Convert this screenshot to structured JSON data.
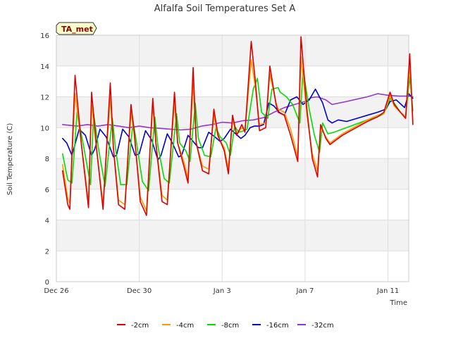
{
  "chart_data": {
    "type": "line",
    "title": "Alfalfa Soil Temperatures Set A",
    "xlabel": "Time",
    "ylabel": "Soil Temperature (C)",
    "ylim": [
      0,
      16
    ],
    "yticks": [
      0,
      2,
      4,
      6,
      8,
      10,
      12,
      14,
      16
    ],
    "xlim": [
      0,
      17
    ],
    "xticks": [
      {
        "x": 0,
        "label": "Dec 26"
      },
      {
        "x": 4,
        "label": "Dec 30"
      },
      {
        "x": 8,
        "label": "Jan 3"
      },
      {
        "x": 12,
        "label": "Jan 7"
      },
      {
        "x": 16,
        "label": "Jan 11"
      }
    ],
    "grid": true,
    "legend": "bottom",
    "station_tag": "TA_met",
    "series": [
      {
        "name": "-2cm",
        "color": "#dd0000",
        "x": [
          0.3,
          0.55,
          0.65,
          0.9,
          1.2,
          1.55,
          1.7,
          1.95,
          2.25,
          2.6,
          2.75,
          3.0,
          3.3,
          3.6,
          3.75,
          4.05,
          4.35,
          4.65,
          4.8,
          5.1,
          5.35,
          5.7,
          5.85,
          6.15,
          6.35,
          6.6,
          6.75,
          7.05,
          7.35,
          7.6,
          7.8,
          8.1,
          8.3,
          8.5,
          8.7,
          8.95,
          9.1,
          9.4,
          9.6,
          9.8,
          10.1,
          10.3,
          10.6,
          10.7,
          11.0,
          11.3,
          11.65,
          11.8,
          12.1,
          12.35,
          12.6,
          12.75,
          13.0,
          13.2,
          13.4,
          13.8,
          14.2,
          14.6,
          15.0,
          15.5,
          15.8,
          16.1,
          16.3,
          16.6,
          16.85,
          17.05,
          17.2
        ],
        "values": [
          7.2,
          5.0,
          4.7,
          13.4,
          9.0,
          4.8,
          12.3,
          8.5,
          4.7,
          12.9,
          8.7,
          5.0,
          4.7,
          11.5,
          9.8,
          5.2,
          4.3,
          11.9,
          9.0,
          5.2,
          5.0,
          12.3,
          9.0,
          7.5,
          6.4,
          13.9,
          9.0,
          7.2,
          7.0,
          11.2,
          9.5,
          8.5,
          7.0,
          10.8,
          9.5,
          10.2,
          9.7,
          15.6,
          13.0,
          9.8,
          10.0,
          14.0,
          11.5,
          11.0,
          10.8,
          9.5,
          7.8,
          15.9,
          11.0,
          8.0,
          6.8,
          10.2,
          9.3,
          8.9,
          9.1,
          9.5,
          9.8,
          10.1,
          10.4,
          10.7,
          11.0,
          12.3,
          11.5,
          11.0,
          10.6,
          14.8,
          10.2
        ]
      },
      {
        "name": "-4cm",
        "color": "#ff9900",
        "x": [
          0.3,
          0.55,
          0.65,
          0.9,
          1.2,
          1.55,
          1.7,
          1.95,
          2.25,
          2.6,
          2.75,
          3.0,
          3.3,
          3.6,
          3.75,
          4.05,
          4.35,
          4.65,
          4.8,
          5.1,
          5.35,
          5.7,
          5.85,
          6.15,
          6.35,
          6.6,
          6.75,
          7.05,
          7.35,
          7.6,
          7.8,
          8.1,
          8.3,
          8.5,
          8.7,
          8.95,
          9.1,
          9.4,
          9.6,
          9.8,
          10.1,
          10.3,
          10.6,
          10.7,
          11.0,
          11.3,
          11.65,
          11.8,
          12.1,
          12.35,
          12.6,
          12.75,
          13.0,
          13.2,
          13.4,
          13.8,
          14.2,
          14.6,
          15.0,
          15.5,
          15.8,
          16.1,
          16.3,
          16.6,
          16.85,
          17.05,
          17.2
        ],
        "values": [
          7.6,
          5.4,
          5.1,
          12.2,
          9.0,
          5.1,
          11.5,
          8.4,
          5.0,
          12.0,
          8.7,
          5.3,
          5.0,
          11.0,
          9.6,
          5.5,
          4.6,
          11.5,
          9.0,
          5.6,
          5.3,
          11.7,
          9.0,
          7.8,
          6.7,
          12.9,
          9.0,
          7.5,
          7.3,
          10.8,
          9.4,
          8.7,
          7.3,
          10.5,
          9.6,
          10.0,
          9.8,
          14.4,
          12.6,
          10.2,
          10.3,
          13.5,
          11.6,
          11.2,
          11.0,
          9.9,
          8.1,
          14.6,
          10.7,
          8.3,
          7.2,
          10.0,
          9.4,
          9.0,
          9.2,
          9.6,
          9.9,
          10.2,
          10.5,
          10.8,
          10.9,
          12.1,
          11.4,
          11.0,
          10.7,
          14.0,
          10.4
        ]
      },
      {
        "name": "-8cm",
        "color": "#00dd00",
        "x": [
          0.3,
          0.55,
          0.75,
          1.0,
          1.3,
          1.65,
          1.8,
          2.05,
          2.35,
          2.7,
          2.85,
          3.1,
          3.4,
          3.7,
          3.85,
          4.15,
          4.45,
          4.75,
          4.9,
          5.2,
          5.45,
          5.8,
          5.95,
          6.25,
          6.45,
          6.7,
          6.85,
          7.15,
          7.45,
          7.7,
          7.9,
          8.2,
          8.4,
          8.6,
          8.8,
          9.05,
          9.2,
          9.5,
          9.7,
          9.9,
          10.2,
          10.4,
          10.7,
          10.8,
          11.1,
          11.4,
          11.75,
          11.9,
          12.2,
          12.45,
          12.7,
          12.85,
          13.1,
          13.4,
          13.8,
          14.2,
          14.6,
          15.0,
          15.5,
          15.8,
          16.1,
          16.3,
          16.6,
          16.85,
          17.05,
          17.2
        ],
        "values": [
          8.3,
          6.6,
          6.4,
          11.0,
          8.9,
          6.3,
          10.9,
          8.5,
          6.2,
          10.6,
          8.7,
          6.3,
          6.3,
          10.4,
          9.2,
          6.5,
          5.9,
          10.7,
          8.8,
          6.7,
          6.4,
          10.9,
          9.0,
          8.5,
          7.8,
          11.6,
          9.3,
          8.2,
          8.1,
          10.0,
          9.4,
          9.0,
          8.2,
          10.1,
          9.7,
          9.8,
          9.9,
          12.5,
          13.2,
          11.0,
          10.6,
          12.5,
          12.6,
          12.3,
          12.0,
          11.5,
          10.3,
          13.8,
          11.2,
          9.5,
          8.4,
          10.3,
          9.6,
          9.7,
          9.9,
          10.1,
          10.3,
          10.5,
          10.7,
          10.9,
          11.9,
          11.6,
          11.0,
          10.7,
          13.3,
          11.1
        ]
      },
      {
        "name": "-16cm",
        "color": "#0000cc",
        "x": [
          0.3,
          0.5,
          0.75,
          1.1,
          1.4,
          1.7,
          1.85,
          2.1,
          2.4,
          2.75,
          2.9,
          3.2,
          3.5,
          3.8,
          4.0,
          4.3,
          4.6,
          4.9,
          5.05,
          5.35,
          5.6,
          5.9,
          6.05,
          6.35,
          6.6,
          6.85,
          7.05,
          7.35,
          7.65,
          7.9,
          8.1,
          8.4,
          8.65,
          8.9,
          9.1,
          9.35,
          9.55,
          9.8,
          10.0,
          10.25,
          10.5,
          10.75,
          11.0,
          11.3,
          11.6,
          11.9,
          12.2,
          12.5,
          12.85,
          13.1,
          13.3,
          13.6,
          14.0,
          14.5,
          15.0,
          15.5,
          15.9,
          16.1,
          16.4,
          16.8,
          17.0,
          17.2
        ],
        "values": [
          9.3,
          9.0,
          8.2,
          9.9,
          9.5,
          8.2,
          8.6,
          9.9,
          9.4,
          8.1,
          8.2,
          9.9,
          9.4,
          8.2,
          8.3,
          9.8,
          9.2,
          7.9,
          8.2,
          9.6,
          9.0,
          8.1,
          8.2,
          9.5,
          9.1,
          8.7,
          8.7,
          9.7,
          9.4,
          9.1,
          9.3,
          9.9,
          9.6,
          9.3,
          9.5,
          10.0,
          10.1,
          10.1,
          10.2,
          11.6,
          11.4,
          11.0,
          10.8,
          11.8,
          12.0,
          11.5,
          11.8,
          12.5,
          11.6,
          10.5,
          10.3,
          10.5,
          10.4,
          10.6,
          10.8,
          11.0,
          11.2,
          11.7,
          11.8,
          11.3,
          12.2,
          11.9
        ]
      },
      {
        "name": "-32cm",
        "color": "#9933cc",
        "x": [
          0.3,
          1.0,
          1.5,
          2.0,
          2.5,
          3.0,
          3.5,
          4.0,
          4.5,
          5.0,
          5.5,
          6.0,
          6.5,
          7.0,
          7.5,
          8.0,
          8.5,
          9.0,
          9.5,
          10.0,
          10.5,
          11.0,
          11.5,
          12.0,
          12.3,
          12.6,
          13.0,
          13.3,
          14.0,
          15.0,
          15.5,
          16.0,
          16.5,
          17.0,
          17.2
        ],
        "values": [
          10.2,
          10.1,
          10.2,
          10.1,
          10.2,
          10.1,
          10.0,
          10.1,
          10.0,
          9.95,
          9.9,
          9.85,
          9.9,
          10.1,
          10.2,
          10.35,
          10.3,
          10.45,
          10.5,
          10.65,
          11.0,
          11.3,
          11.5,
          11.7,
          11.95,
          12.0,
          11.8,
          11.5,
          11.7,
          12.0,
          12.2,
          12.1,
          12.05,
          12.05,
          12.0
        ]
      }
    ]
  }
}
